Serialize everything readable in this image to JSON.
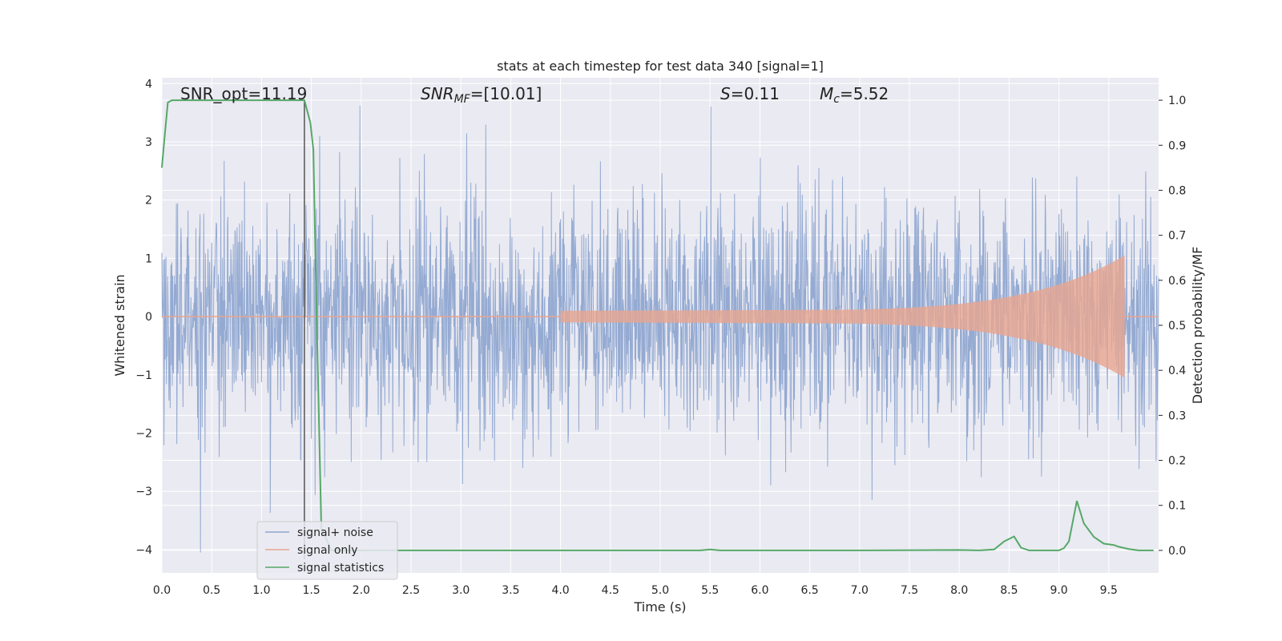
{
  "chart_data": {
    "type": "line",
    "title": "stats at each timestep for test data 340 [signal=1]",
    "xlabel": "Time (s)",
    "ylabel": "Whitened strain",
    "y2label": "Detection probability/MF",
    "xlim": [
      0,
      10
    ],
    "ylim": [
      -4.4,
      4.1
    ],
    "y2lim": [
      -0.05,
      1.05
    ],
    "xticks": [
      "0.0",
      "0.5",
      "1.0",
      "1.5",
      "2.0",
      "2.5",
      "3.0",
      "3.5",
      "4.0",
      "4.5",
      "5.0",
      "5.5",
      "6.0",
      "6.5",
      "7.0",
      "7.5",
      "8.0",
      "8.5",
      "9.0",
      "9.5"
    ],
    "yticks": [
      "4",
      "3",
      "2",
      "1",
      "0",
      "−1",
      "−2",
      "−3",
      "−4"
    ],
    "y2ticks": [
      "1.0",
      "0.9",
      "0.8",
      "0.7",
      "0.6",
      "0.5",
      "0.4",
      "0.3",
      "0.2",
      "0.1",
      "0.0"
    ],
    "grid": true,
    "legend_position": "lower-left",
    "annotations": {
      "snr_opt": "SNR_opt=11.19",
      "snr_mf_sym": "SNR",
      "snr_mf_sub": "MF",
      "snr_mf_val": "=[10.01]",
      "s_sym": "S",
      "s_val": "=0.11",
      "mc_sym": "M",
      "mc_sub": "c",
      "mc_val": "=5.52"
    },
    "marker_line_x": 1.43,
    "series": [
      {
        "name": "signal+ noise",
        "color": "#8fa6d0",
        "description_values": "Gaussian noise band, std ~1, extremes near ±3.7"
      },
      {
        "name": "signal only",
        "color": "#e8a58f",
        "chirp_start": 4.0,
        "chirp_end": 9.66,
        "peak_amplitude": 1.05
      },
      {
        "name": "signal statistics",
        "color": "#55a868",
        "x": [
          0.0,
          0.02,
          0.06,
          0.1,
          0.2,
          0.5,
          1.0,
          1.3,
          1.43,
          1.49,
          1.52,
          1.55,
          1.6,
          1.7,
          2.0,
          3.0,
          4.0,
          5.0,
          5.4,
          5.5,
          5.6,
          6.0,
          7.0,
          8.0,
          8.2,
          8.35,
          8.45,
          8.55,
          8.62,
          8.7,
          8.8,
          9.0,
          9.05,
          9.1,
          9.18,
          9.25,
          9.35,
          9.45,
          9.55,
          9.6,
          9.7,
          9.8,
          9.95
        ],
        "y": [
          0.85,
          0.9,
          0.995,
          1.0,
          1.0,
          1.0,
          1.0,
          1.0,
          1.0,
          0.95,
          0.89,
          0.55,
          0.05,
          0.0,
          0.0,
          0.0,
          0.0,
          0.0,
          0.0,
          0.002,
          0.0,
          0.0,
          0.0,
          0.001,
          0.0,
          0.002,
          0.02,
          0.031,
          0.006,
          0.0,
          0.0,
          0.0,
          0.005,
          0.02,
          0.11,
          0.06,
          0.03,
          0.015,
          0.012,
          0.008,
          0.003,
          0.0,
          0.0
        ]
      }
    ]
  }
}
